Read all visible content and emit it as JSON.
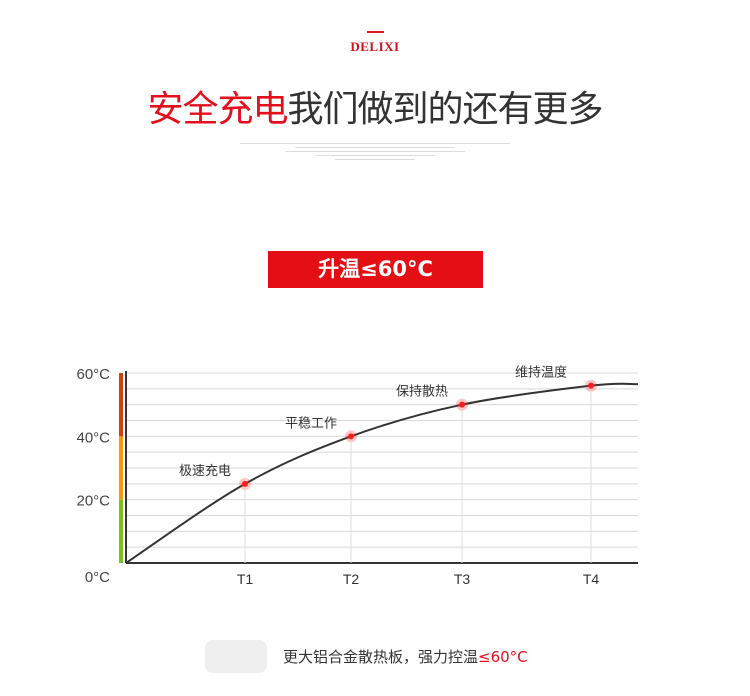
{
  "brand": {
    "logo": "DELIXI",
    "accent": "#e30f1c"
  },
  "header": {
    "title_highlight": "安全充电",
    "title_rest": "我们做到的还有更多"
  },
  "badge": {
    "label": "升温≤60°C"
  },
  "chart_data": {
    "type": "line",
    "title": "",
    "xlabel": "",
    "ylabel": "",
    "ylim": [
      0,
      60
    ],
    "yticks": [
      "0°C",
      "20°C",
      "40°C",
      "60°C"
    ],
    "ytick_values": [
      0,
      20,
      40,
      60
    ],
    "grid": true,
    "categories": [
      "T1",
      "T2",
      "T3",
      "T4"
    ],
    "values": [
      25,
      40,
      50,
      56
    ],
    "annotations": [
      "极速充电",
      "平稳工作",
      "保持散热",
      "维持温度"
    ],
    "zone_colors": [
      {
        "range": [
          0,
          20
        ],
        "color": "#7cbf1e"
      },
      {
        "range": [
          20,
          40
        ],
        "color": "#f59a0c"
      },
      {
        "range": [
          40,
          60
        ],
        "color": "#d2410c"
      }
    ],
    "line_color": "#333333",
    "marker_color": "#ff2020"
  },
  "footer": {
    "text": "更大铝合金散热板，强力控温",
    "highlight": "≤60°C"
  }
}
